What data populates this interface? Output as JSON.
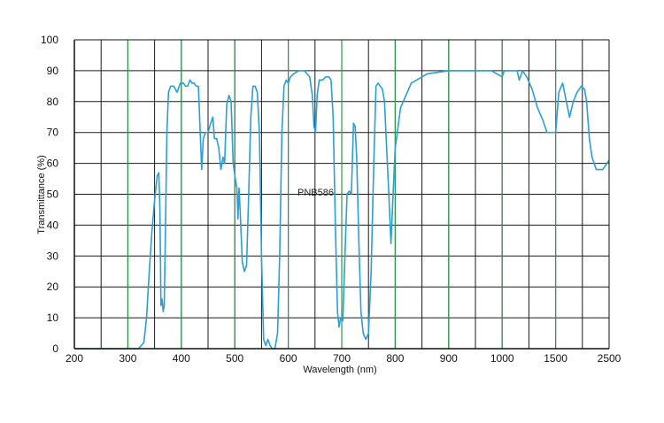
{
  "chart_data": {
    "type": "line",
    "xlabel": "Wavelength (nm)",
    "ylabel": "Transmittance (%)",
    "annotation": "PNB586",
    "ylim": [
      0,
      100
    ],
    "y_ticks": [
      "0",
      "10",
      "20",
      "30",
      "40",
      "50",
      "60",
      "70",
      "80",
      "90",
      "100"
    ],
    "x_ticks": [
      "200",
      "300",
      "400",
      "500",
      "600",
      "700",
      "800",
      "900",
      "1000",
      "1500",
      "2500"
    ],
    "grid": true,
    "colors": {
      "line": "#2a9fd6",
      "grid_major": "#2e9a48",
      "grid_minor": "#1a1a1a",
      "axis": "#111111"
    },
    "series": [
      {
        "points": [
          [
            200,
            0
          ],
          [
            320,
            0
          ],
          [
            330,
            2
          ],
          [
            335,
            10
          ],
          [
            340,
            25
          ],
          [
            345,
            38
          ],
          [
            350,
            48
          ],
          [
            355,
            56
          ],
          [
            358,
            57
          ],
          [
            360,
            45
          ],
          [
            362,
            14
          ],
          [
            364,
            16
          ],
          [
            366,
            12
          ],
          [
            368,
            14
          ],
          [
            370,
            35
          ],
          [
            373,
            70
          ],
          [
            376,
            83
          ],
          [
            380,
            85
          ],
          [
            386,
            85
          ],
          [
            392,
            83
          ],
          [
            398,
            86
          ],
          [
            404,
            86
          ],
          [
            408,
            85
          ],
          [
            412,
            85
          ],
          [
            416,
            87
          ],
          [
            420,
            86
          ],
          [
            424,
            86
          ],
          [
            428,
            85
          ],
          [
            432,
            85
          ],
          [
            435,
            72
          ],
          [
            438,
            58
          ],
          [
            441,
            68
          ],
          [
            445,
            70
          ],
          [
            450,
            70
          ],
          [
            455,
            73
          ],
          [
            459,
            75
          ],
          [
            462,
            68
          ],
          [
            466,
            68
          ],
          [
            470,
            65
          ],
          [
            474,
            58
          ],
          [
            478,
            62
          ],
          [
            481,
            60
          ],
          [
            485,
            79
          ],
          [
            489,
            82
          ],
          [
            493,
            80
          ],
          [
            497,
            60
          ],
          [
            501,
            55
          ],
          [
            504,
            52
          ],
          [
            506,
            42
          ],
          [
            508,
            52
          ],
          [
            510,
            45
          ],
          [
            514,
            28
          ],
          [
            518,
            25
          ],
          [
            522,
            27
          ],
          [
            526,
            50
          ],
          [
            530,
            75
          ],
          [
            534,
            85
          ],
          [
            538,
            85
          ],
          [
            542,
            83
          ],
          [
            546,
            70
          ],
          [
            550,
            30
          ],
          [
            554,
            3
          ],
          [
            558,
            1
          ],
          [
            562,
            3
          ],
          [
            566,
            1
          ],
          [
            570,
            0
          ],
          [
            575,
            0
          ],
          [
            580,
            5
          ],
          [
            584,
            30
          ],
          [
            588,
            70
          ],
          [
            592,
            85
          ],
          [
            596,
            87
          ],
          [
            600,
            86
          ],
          [
            604,
            88
          ],
          [
            610,
            89
          ],
          [
            620,
            90
          ],
          [
            630,
            90
          ],
          [
            640,
            88
          ],
          [
            645,
            82
          ],
          [
            648,
            72
          ],
          [
            651,
            70
          ],
          [
            654,
            82
          ],
          [
            658,
            87
          ],
          [
            664,
            87
          ],
          [
            670,
            88
          ],
          [
            676,
            88
          ],
          [
            680,
            87
          ],
          [
            684,
            75
          ],
          [
            688,
            40
          ],
          [
            692,
            12
          ],
          [
            695,
            7
          ],
          [
            698,
            10
          ],
          [
            702,
            9
          ],
          [
            706,
            30
          ],
          [
            710,
            50
          ],
          [
            714,
            51
          ],
          [
            718,
            50
          ],
          [
            722,
            73
          ],
          [
            725,
            72
          ],
          [
            728,
            62
          ],
          [
            732,
            35
          ],
          [
            736,
            12
          ],
          [
            740,
            5
          ],
          [
            745,
            3
          ],
          [
            750,
            5
          ],
          [
            755,
            25
          ],
          [
            760,
            60
          ],
          [
            764,
            85
          ],
          [
            768,
            86
          ],
          [
            772,
            85
          ],
          [
            776,
            84
          ],
          [
            780,
            80
          ],
          [
            784,
            65
          ],
          [
            788,
            50
          ],
          [
            792,
            34
          ],
          [
            796,
            50
          ],
          [
            800,
            65
          ],
          [
            804,
            70
          ],
          [
            810,
            78
          ],
          [
            830,
            86
          ],
          [
            860,
            89
          ],
          [
            900,
            90
          ],
          [
            950,
            90
          ],
          [
            980,
            90
          ],
          [
            1000,
            88
          ],
          [
            1020,
            90
          ],
          [
            1060,
            90
          ],
          [
            1100,
            90
          ],
          [
            1140,
            90
          ],
          [
            1160,
            87
          ],
          [
            1190,
            90
          ],
          [
            1230,
            88
          ],
          [
            1280,
            84
          ],
          [
            1330,
            78
          ],
          [
            1380,
            74
          ],
          [
            1420,
            70
          ],
          [
            1460,
            70
          ],
          [
            1500,
            70
          ],
          [
            1560,
            83
          ],
          [
            1630,
            86
          ],
          [
            1700,
            80
          ],
          [
            1760,
            75
          ],
          [
            1830,
            80
          ],
          [
            1900,
            83
          ],
          [
            1980,
            85
          ],
          [
            2040,
            84
          ],
          [
            2080,
            80
          ],
          [
            2130,
            68
          ],
          [
            2180,
            62
          ],
          [
            2260,
            58
          ],
          [
            2380,
            58
          ],
          [
            2500,
            61
          ]
        ]
      }
    ]
  }
}
